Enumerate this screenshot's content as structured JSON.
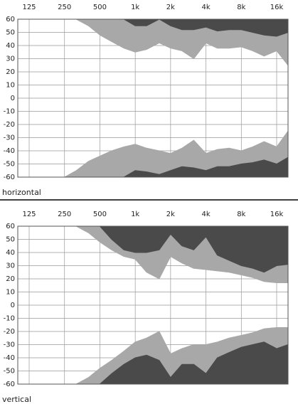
{
  "chart_data": [
    {
      "type": "area",
      "title": "horizontal",
      "xscale": "log",
      "xlim": [
        100,
        20000
      ],
      "ylim": [
        -60,
        60
      ],
      "xticks": [
        {
          "value": 125,
          "label": "125"
        },
        {
          "value": 250,
          "label": "250"
        },
        {
          "value": 500,
          "label": "500"
        },
        {
          "value": 1000,
          "label": "1k"
        },
        {
          "value": 2000,
          "label": "2k"
        },
        {
          "value": 4000,
          "label": "4k"
        },
        {
          "value": 8000,
          "label": "8k"
        },
        {
          "value": 16000,
          "label": "16k"
        }
      ],
      "yticks": [
        60,
        50,
        40,
        30,
        20,
        10,
        0,
        -10,
        -20,
        -30,
        -40,
        -50,
        -60
      ],
      "grid": true,
      "x": [
        100,
        125,
        160,
        200,
        250,
        315,
        400,
        500,
        630,
        800,
        1000,
        1250,
        1600,
        2000,
        2500,
        3150,
        4000,
        5000,
        6300,
        8000,
        10000,
        12500,
        16000,
        20000
      ],
      "series": [
        {
          "color": "#a8a8a8",
          "fill_to": "top",
          "values": [
            null,
            null,
            null,
            null,
            null,
            60,
            55,
            48,
            43,
            38,
            35,
            37,
            42,
            38,
            36,
            30,
            42,
            38,
            38,
            39,
            36,
            32,
            36,
            25
          ]
        },
        {
          "color": "#a8a8a8",
          "fill_to": "bottom",
          "values": [
            null,
            null,
            null,
            null,
            -60,
            -55,
            -48,
            -44,
            -40,
            -37,
            -35,
            -38,
            -40,
            -42,
            -38,
            -32,
            -42,
            -39,
            -38,
            -40,
            -37,
            -33,
            -37,
            -25
          ]
        },
        {
          "color": "#4a4a4a",
          "fill_to": "top",
          "values": [
            null,
            null,
            null,
            null,
            null,
            null,
            null,
            null,
            null,
            60,
            55,
            55,
            60,
            55,
            52,
            52,
            54,
            51,
            52,
            52,
            50,
            48,
            47,
            50
          ]
        },
        {
          "color": "#4a4a4a",
          "fill_to": "bottom",
          "values": [
            null,
            null,
            null,
            null,
            null,
            null,
            null,
            null,
            null,
            -60,
            -55,
            -56,
            -58,
            -55,
            -52,
            -53,
            -55,
            -52,
            -52,
            -50,
            -49,
            -47,
            -50,
            -45
          ]
        }
      ]
    },
    {
      "type": "area",
      "title": "vertical",
      "xscale": "log",
      "xlim": [
        100,
        20000
      ],
      "ylim": [
        -60,
        60
      ],
      "xticks": [
        {
          "value": 125,
          "label": "125"
        },
        {
          "value": 250,
          "label": "250"
        },
        {
          "value": 500,
          "label": "500"
        },
        {
          "value": 1000,
          "label": "1k"
        },
        {
          "value": 2000,
          "label": "2k"
        },
        {
          "value": 4000,
          "label": "4k"
        },
        {
          "value": 8000,
          "label": "8k"
        },
        {
          "value": 16000,
          "label": "16k"
        }
      ],
      "yticks": [
        60,
        50,
        40,
        30,
        20,
        10,
        0,
        -10,
        -20,
        -30,
        -40,
        -50,
        -60
      ],
      "grid": true,
      "x": [
        100,
        125,
        160,
        200,
        250,
        315,
        400,
        500,
        630,
        800,
        1000,
        1250,
        1600,
        2000,
        2500,
        3150,
        4000,
        5000,
        6300,
        8000,
        10000,
        12500,
        16000,
        20000
      ],
      "series": [
        {
          "color": "#a8a8a8",
          "fill_to": "top",
          "values": [
            null,
            null,
            null,
            null,
            null,
            60,
            55,
            48,
            42,
            37,
            35,
            25,
            20,
            37,
            32,
            28,
            27,
            26,
            25,
            23,
            21,
            18,
            17,
            17
          ]
        },
        {
          "color": "#a8a8a8",
          "fill_to": "bottom",
          "values": [
            null,
            null,
            null,
            null,
            null,
            -60,
            -55,
            -48,
            -42,
            -35,
            -28,
            -25,
            -20,
            -37,
            -33,
            -30,
            -30,
            -28,
            -25,
            -23,
            -21,
            -18,
            -17,
            -17
          ]
        },
        {
          "color": "#4a4a4a",
          "fill_to": "top",
          "values": [
            null,
            null,
            null,
            null,
            null,
            null,
            null,
            60,
            50,
            42,
            40,
            40,
            42,
            54,
            45,
            42,
            52,
            38,
            34,
            30,
            28,
            25,
            30,
            31
          ]
        },
        {
          "color": "#4a4a4a",
          "fill_to": "bottom",
          "values": [
            null,
            null,
            null,
            null,
            null,
            null,
            null,
            -60,
            -52,
            -45,
            -40,
            -38,
            -42,
            -55,
            -45,
            -45,
            -52,
            -40,
            -36,
            -32,
            -30,
            -28,
            -33,
            -30
          ]
        }
      ]
    }
  ]
}
